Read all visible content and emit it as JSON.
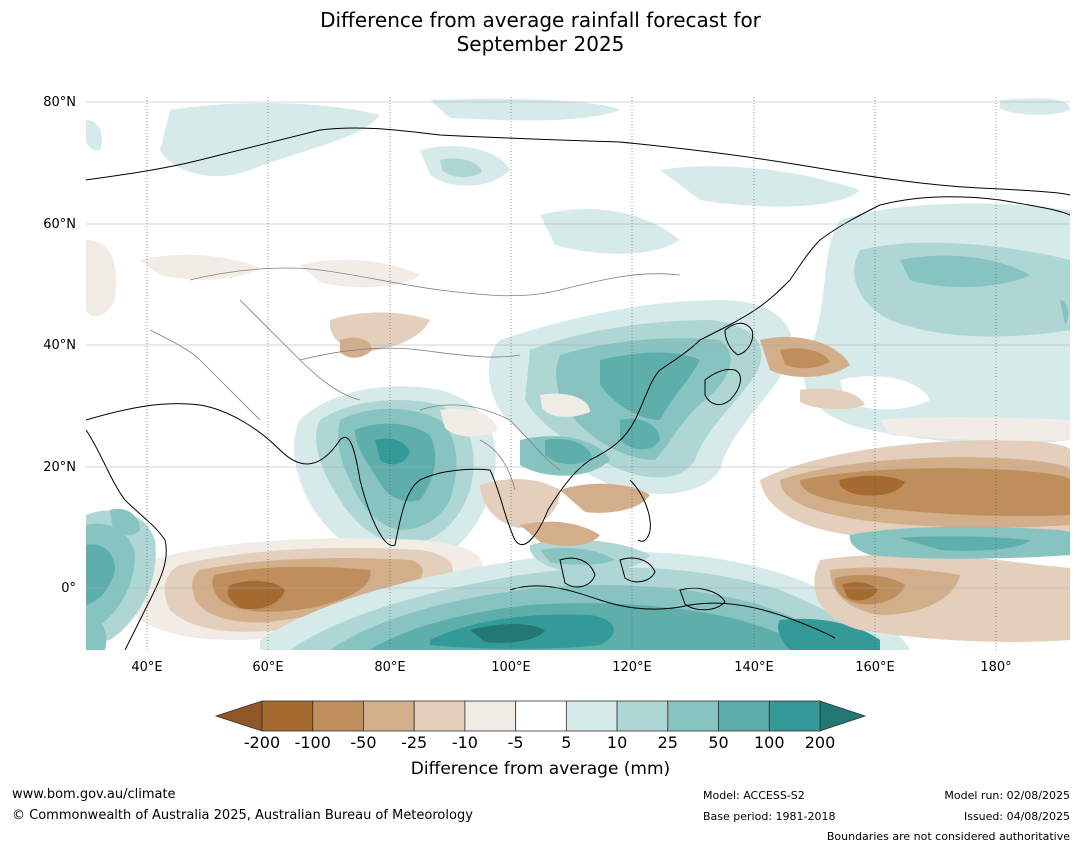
{
  "title_line1": "Difference from average rainfall forecast for",
  "title_line2": "September 2025",
  "lat_labels": [
    "80°N",
    "60°N",
    "40°N",
    "20°N",
    "0°"
  ],
  "lon_labels": [
    "40°E",
    "60°E",
    "80°E",
    "100°E",
    "120°E",
    "140°E",
    "160°E",
    "180°"
  ],
  "legend": {
    "title": "Difference from average (mm)",
    "ticks": [
      "-200",
      "-100",
      "-50",
      "-25",
      "-10",
      "-5",
      "5",
      "10",
      "25",
      "50",
      "100",
      "200"
    ],
    "colors": [
      "#a46a30",
      "#bf8e5d",
      "#d2af8a",
      "#e3cfbb",
      "#f1ede6",
      "#ffffff",
      "#d6ebe9",
      "#aed6d5",
      "#87c4c1",
      "#5eaeac",
      "#339a97",
      "#237873"
    ],
    "under_color": "#8f5826",
    "over_color": "#237873"
  },
  "footer": {
    "website": "www.bom.gov.au/climate",
    "copyright": "© Commonwealth of Australia 2025, Australian Bureau of Meteorology",
    "model": "Model: ACCESS-S2",
    "base_period": "Base period: 1981-2018",
    "model_run": "Model run: 02/08/2025",
    "issued": "Issued: 04/08/2025",
    "disclaimer": "Boundaries are not considered authoritative"
  }
}
